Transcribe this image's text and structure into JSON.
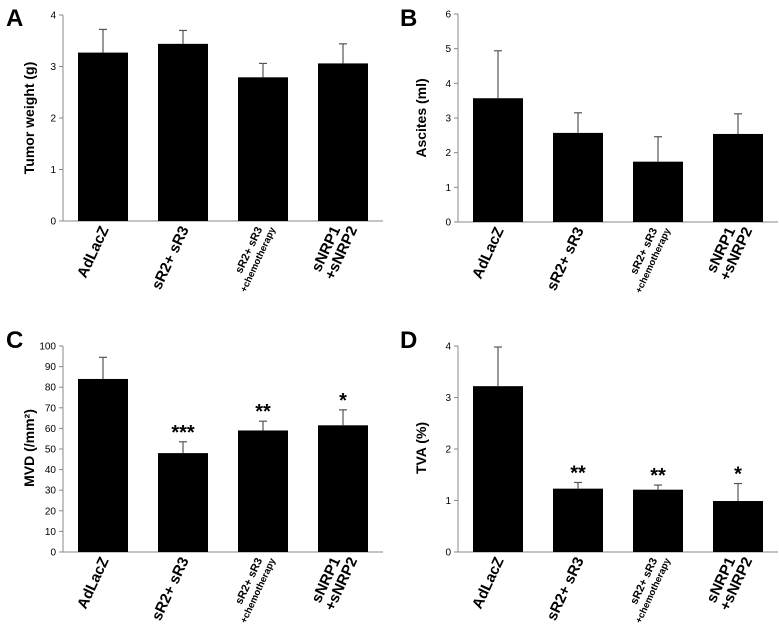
{
  "chart_data": [
    {
      "type": "bar",
      "panel": "A",
      "title": "",
      "xlabel": "",
      "ylabel": "Tumor weight (g)",
      "ylim": [
        0,
        4
      ],
      "yticks": [
        0,
        1,
        2,
        3,
        4
      ],
      "categories": [
        [
          "AdLacZ"
        ],
        [
          "sR2+ sR3"
        ],
        [
          "sR2+ sR3",
          "+chemotherapy"
        ],
        [
          "sNRP1",
          "+sNRP2"
        ]
      ],
      "values": [
        3.27,
        3.44,
        2.79,
        3.06
      ],
      "errors": [
        0.45,
        0.26,
        0.27,
        0.38
      ],
      "significance": [
        "",
        "",
        "",
        ""
      ],
      "grid": false,
      "bar_color": "#000000"
    },
    {
      "type": "bar",
      "panel": "B",
      "title": "",
      "xlabel": "",
      "ylabel": "Ascites (ml)",
      "ylim": [
        0,
        6
      ],
      "yticks": [
        0,
        1,
        2,
        3,
        4,
        5,
        6
      ],
      "categories": [
        [
          "AdLacZ"
        ],
        [
          "sR2+ sR3"
        ],
        [
          "sR2+ sR3",
          "+chemotherapy"
        ],
        [
          "sNRP1",
          "+sNRP2"
        ]
      ],
      "values": [
        3.57,
        2.57,
        1.74,
        2.54
      ],
      "errors": [
        1.37,
        0.58,
        0.72,
        0.58
      ],
      "significance": [
        "",
        "",
        "",
        ""
      ],
      "grid": false,
      "bar_color": "#000000"
    },
    {
      "type": "bar",
      "panel": "C",
      "title": "",
      "xlabel": "",
      "ylabel": "MVD (/mm²)",
      "ylim": [
        0,
        100
      ],
      "yticks": [
        0,
        10,
        20,
        30,
        40,
        50,
        60,
        70,
        80,
        90,
        100
      ],
      "categories": [
        [
          "AdLacZ"
        ],
        [
          "sR2+ sR3"
        ],
        [
          "sR2+ sR3",
          "+chemotherapy"
        ],
        [
          "sNRP1",
          "+sNRP2"
        ]
      ],
      "values": [
        84,
        48,
        59,
        61.5
      ],
      "errors": [
        10.5,
        5.5,
        4.5,
        7.5
      ],
      "significance": [
        "",
        "***",
        "**",
        "*"
      ],
      "grid": false,
      "bar_color": "#000000"
    },
    {
      "type": "bar",
      "panel": "D",
      "title": "",
      "xlabel": "",
      "ylabel": "TVA (%)",
      "ylim": [
        0,
        4
      ],
      "yticks": [
        0,
        1,
        2,
        3,
        4
      ],
      "categories": [
        [
          "AdLacZ"
        ],
        [
          "sR2+ sR3"
        ],
        [
          "sR2+ sR3",
          "+chemotherapy"
        ],
        [
          "sNRP1",
          "+sNRP2"
        ]
      ],
      "values": [
        3.22,
        1.23,
        1.21,
        0.99
      ],
      "errors": [
        0.76,
        0.12,
        0.09,
        0.34
      ],
      "significance": [
        "",
        "**",
        "**",
        "*"
      ],
      "grid": false,
      "bar_color": "#000000"
    }
  ]
}
